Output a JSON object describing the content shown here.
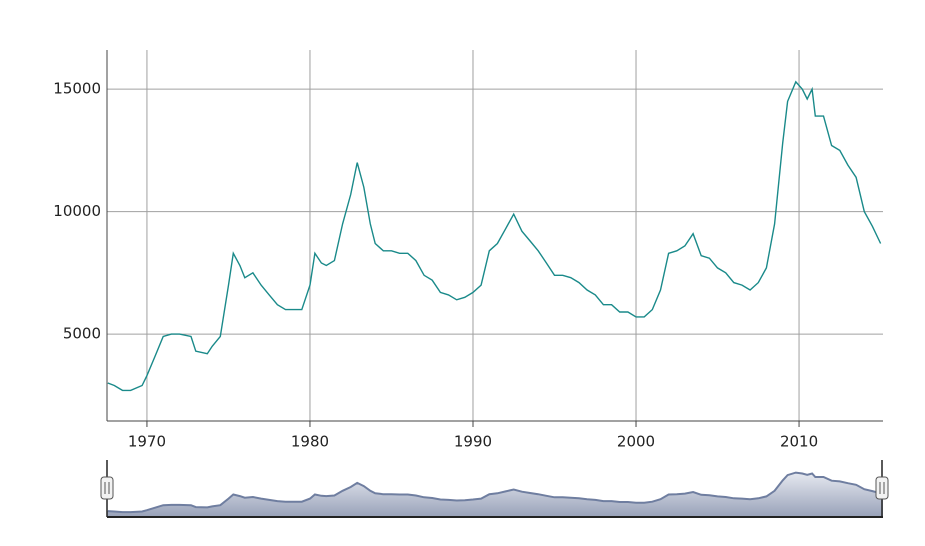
{
  "chart_data": {
    "type": "line",
    "color": "#1a8a8a",
    "grid": true,
    "xlim": [
      1967.55,
      2015.15
    ],
    "ylim": [
      1450,
      16600
    ],
    "xticks": [
      1970,
      1980,
      1990,
      2000,
      2010
    ],
    "yticks": [
      5000,
      10000,
      15000
    ],
    "navigator": true,
    "x": [
      1967.6,
      1968,
      1968.5,
      1969,
      1969.7,
      1970,
      1970.5,
      1971,
      1971.5,
      1972,
      1972.7,
      1973,
      1973.7,
      1974,
      1974.5,
      1975,
      1975.3,
      1975.7,
      1976,
      1976.5,
      1977,
      1977.5,
      1978,
      1978.5,
      1979,
      1979.5,
      1980,
      1980.3,
      1980.7,
      1981,
      1981.5,
      1982,
      1982.5,
      1982.9,
      1983.3,
      1983.7,
      1984,
      1984.5,
      1985,
      1985.5,
      1986,
      1986.5,
      1987,
      1987.5,
      1988,
      1988.5,
      1989,
      1989.5,
      1990,
      1990.5,
      1991,
      1991.5,
      1992,
      1992.5,
      1993,
      1993.5,
      1994,
      1994.5,
      1995,
      1995.5,
      1996,
      1996.5,
      1997,
      1997.5,
      1998,
      1998.5,
      1999,
      1999.5,
      2000,
      2000.5,
      2001,
      2001.5,
      2002,
      2002.5,
      2003,
      2003.5,
      2004,
      2004.5,
      2005,
      2005.5,
      2006,
      2006.5,
      2007,
      2007.5,
      2008,
      2008.5,
      2009,
      2009.3,
      2009.8,
      2010.2,
      2010.5,
      2010.8,
      2011,
      2011.5,
      2012,
      2012.5,
      2013,
      2013.5,
      2014,
      2014.5,
      2015
    ],
    "values": [
      3000,
      2900,
      2700,
      2700,
      2900,
      3300,
      4100,
      4900,
      5000,
      5000,
      4900,
      4300,
      4200,
      4500,
      4900,
      7000,
      8300,
      7800,
      7300,
      7500,
      7000,
      6600,
      6200,
      6000,
      6000,
      6000,
      7000,
      8300,
      7900,
      7800,
      8000,
      9500,
      10700,
      12000,
      11000,
      9500,
      8700,
      8400,
      8400,
      8300,
      8300,
      8000,
      7400,
      7200,
      6700,
      6600,
      6400,
      6500,
      6700,
      7000,
      8400,
      8700,
      9300,
      9900,
      9200,
      8800,
      8400,
      7900,
      7400,
      7400,
      7300,
      7100,
      6800,
      6600,
      6200,
      6200,
      5900,
      5900,
      5700,
      5700,
      6000,
      6800,
      8300,
      8400,
      8600,
      9100,
      8200,
      8100,
      7700,
      7500,
      7100,
      7000,
      6800,
      7100,
      7700,
      9500,
      12800,
      14500,
      15300,
      15000,
      14600,
      15000,
      13900,
      13900,
      12700,
      12500,
      11900,
      11400,
      10000,
      9400,
      8700
    ]
  }
}
